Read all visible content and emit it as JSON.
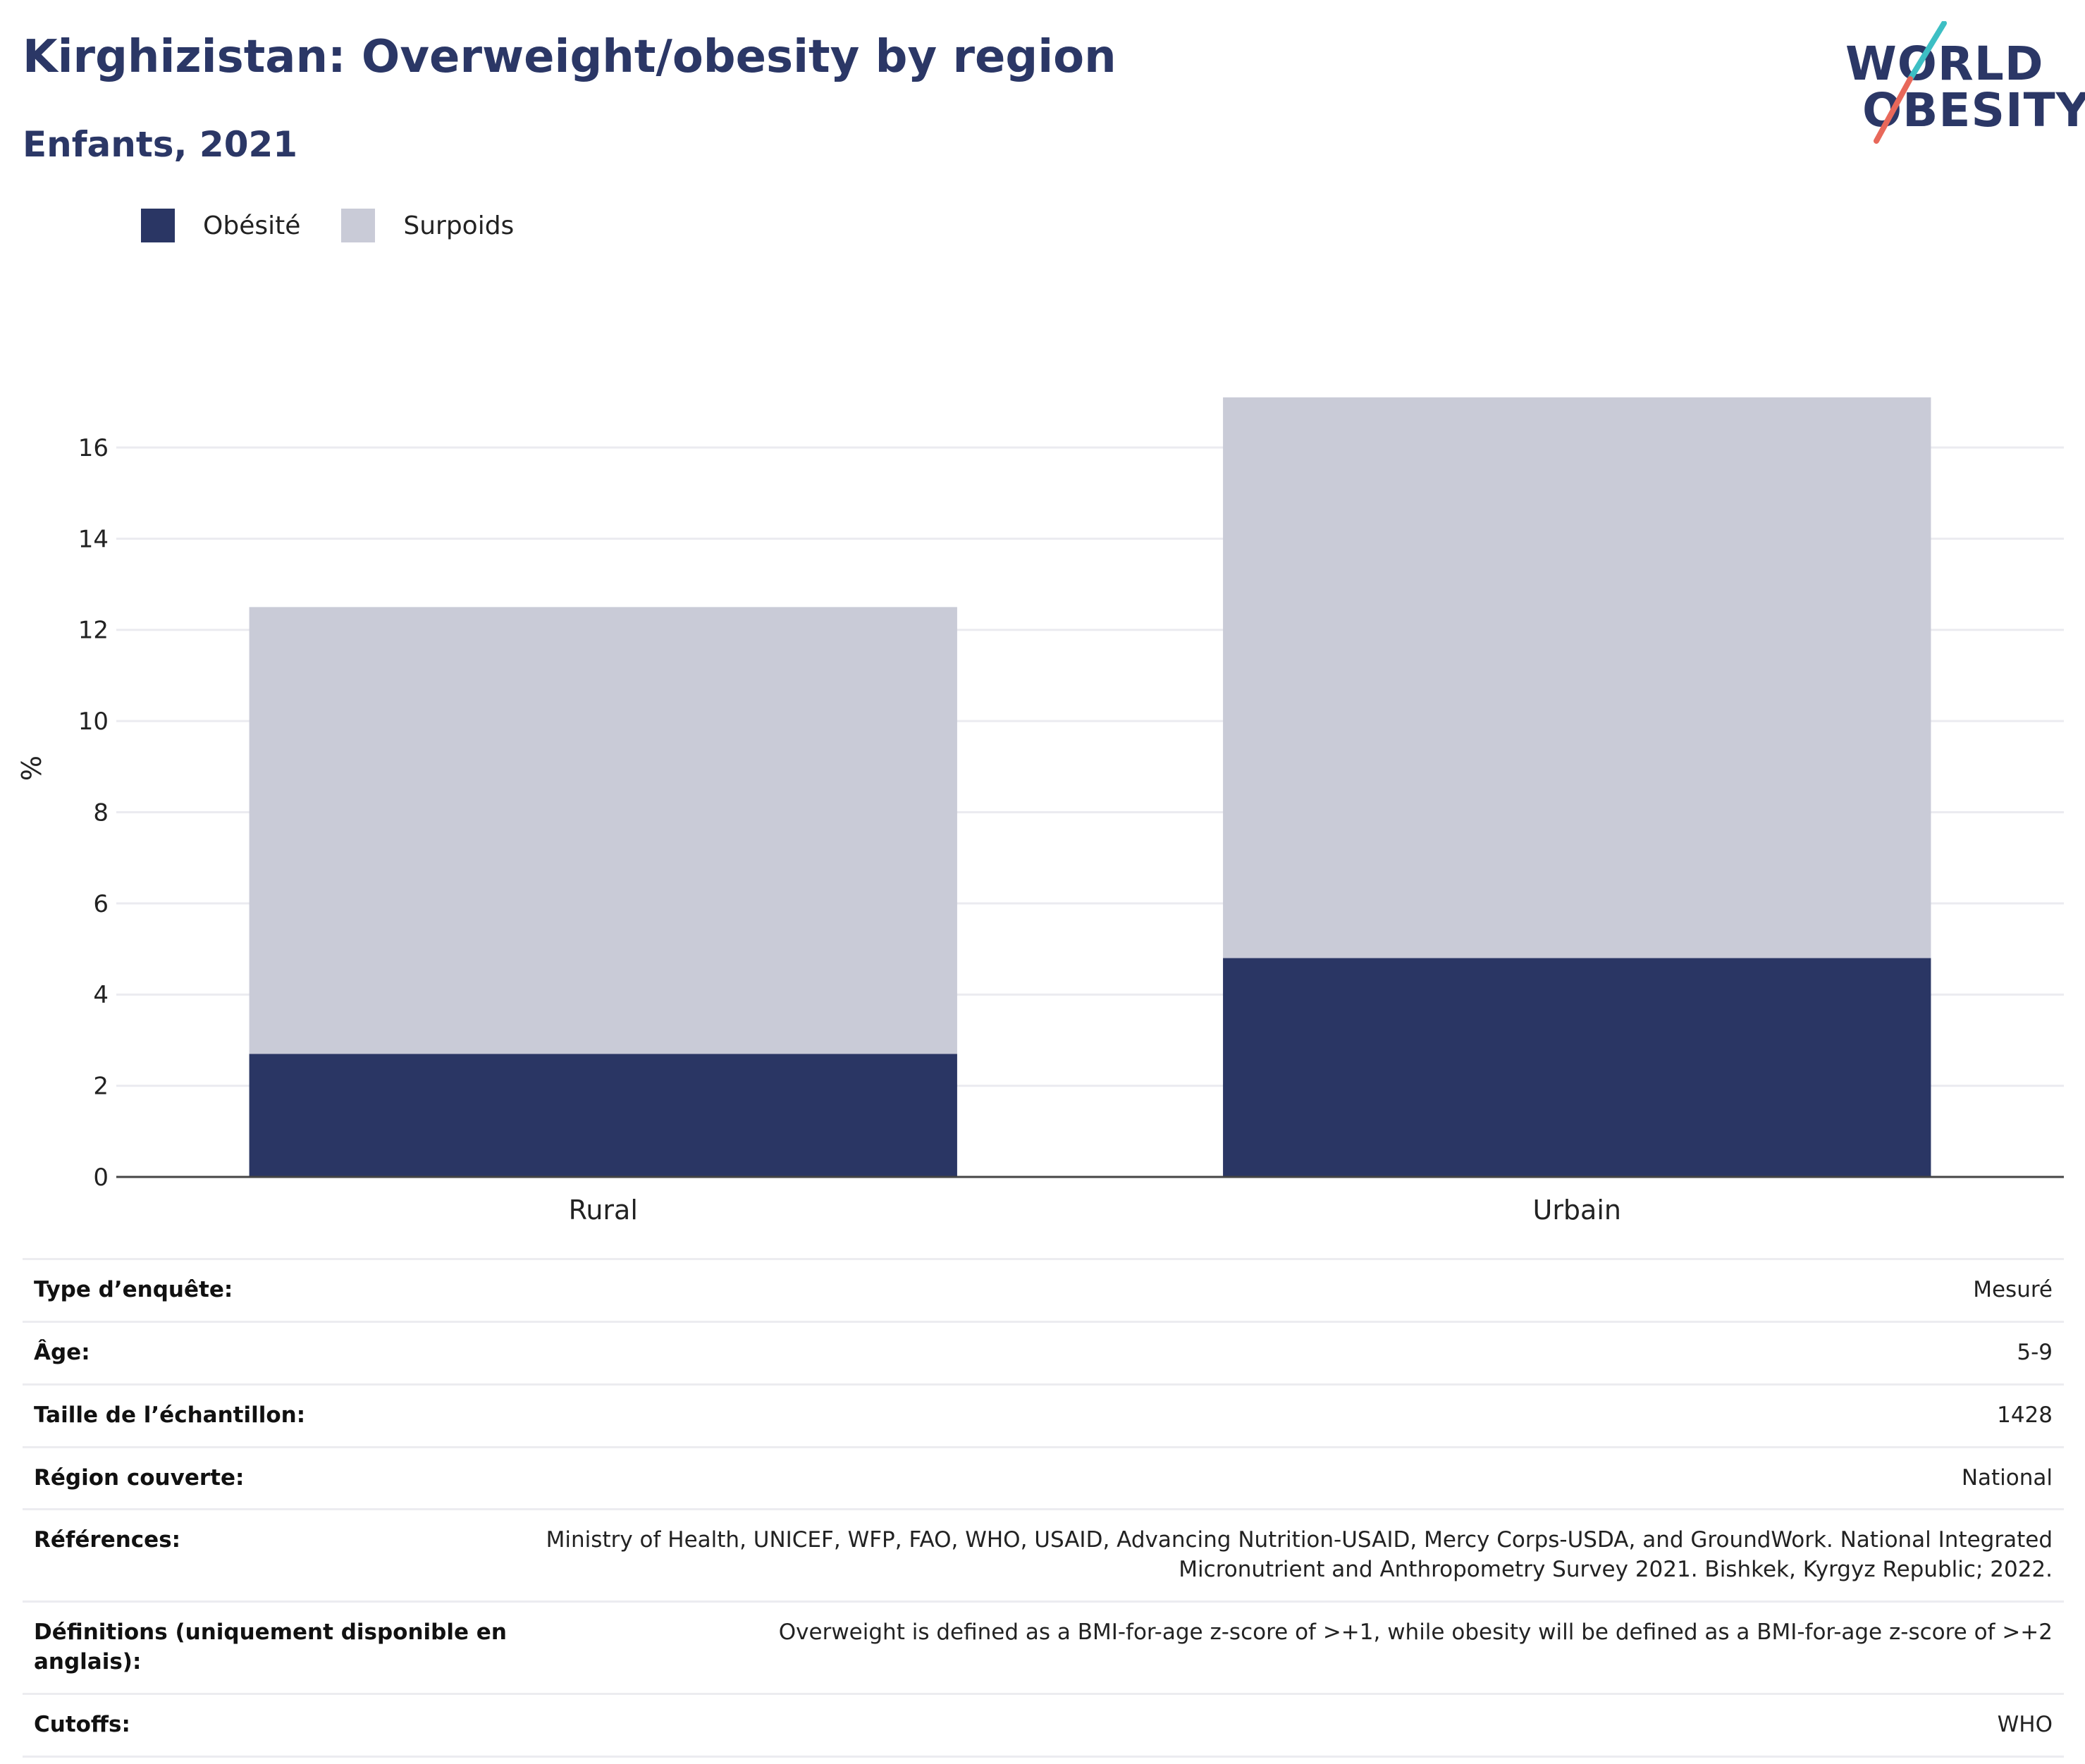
{
  "header": {
    "title": "Kirghizistan: Overweight/obesity by region",
    "subtitle": "Enfants, 2021"
  },
  "logo": {
    "line1": "WORLD",
    "line2": "OBESITY",
    "colors": {
      "text": "#2b3766",
      "slash_top": "#3dbfc4",
      "slash_bottom": "#e8685a"
    }
  },
  "legend": [
    {
      "label": "Obésité",
      "color": "#2a3664"
    },
    {
      "label": "Surpoids",
      "color": "#c9cbd7"
    }
  ],
  "chart_data": {
    "type": "bar",
    "stacked": true,
    "categories": [
      "Rural",
      "Urbain"
    ],
    "series": [
      {
        "name": "Obésité",
        "values": [
          2.7,
          4.8
        ],
        "color": "#2a3664"
      },
      {
        "name": "Surpoids",
        "values": [
          9.8,
          12.3
        ],
        "color": "#c9cbd7"
      }
    ],
    "ylabel": "%",
    "ylim": [
      0,
      17.7
    ],
    "yticks": [
      0,
      2,
      4,
      6,
      8,
      10,
      12,
      14,
      16
    ],
    "grid": true,
    "legend_position": "top-left"
  },
  "info": [
    {
      "key": "Type d’enquête:",
      "value": "Mesuré"
    },
    {
      "key": "Âge:",
      "value": "5-9"
    },
    {
      "key": "Taille de l’échantillon:",
      "value": "1428"
    },
    {
      "key": "Région couverte:",
      "value": "National"
    },
    {
      "key": "Références:",
      "value": "Ministry of Health, UNICEF, WFP, FAO, WHO, USAID, Advancing Nutrition-USAID, Mercy Corps-USDA, and GroundWork. National Integrated Micronutrient and Anthropometry Survey 2021. Bishkek, Kyrgyz Republic; 2022."
    },
    {
      "key": "Définitions (uniquement disponible en anglais):",
      "value": "Overweight is defined as a BMI-for-age z-score of >+1, while obesity will be defined as a BMI-for-age z-score of >+2"
    },
    {
      "key": "Cutoffs:",
      "value": "WHO"
    }
  ]
}
